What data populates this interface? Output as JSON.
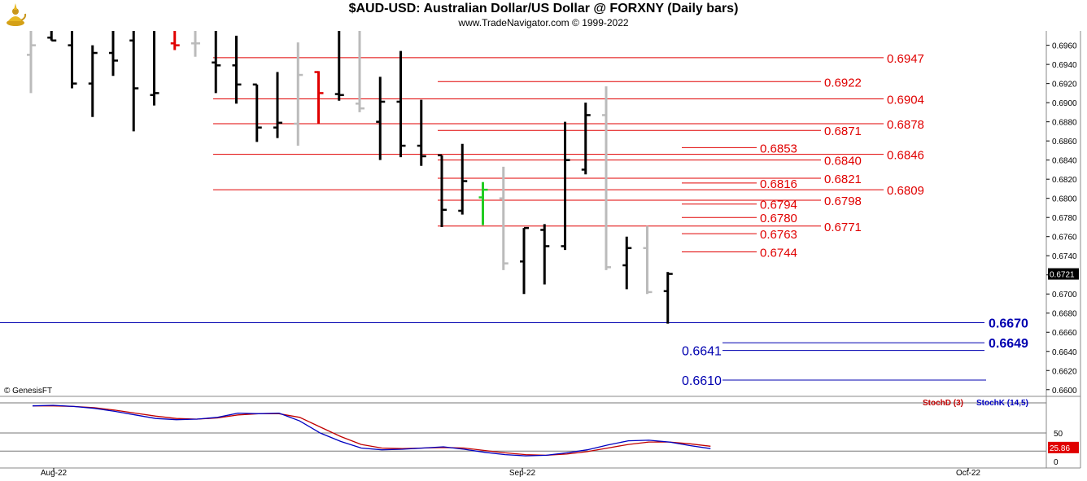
{
  "header": {
    "title": "$AUD-USD:  Australian Dollar/US Dollar @ FORXNY  (Daily bars)",
    "subtitle": "www.TradeNavigator.com © 1999-2022",
    "watermark": "© GenesisFT"
  },
  "chart_data": {
    "type": "bar",
    "price_axis": {
      "ticks": [
        "0.6960",
        "0.6940",
        "0.6920",
        "0.6900",
        "0.6880",
        "0.6860",
        "0.6840",
        "0.6820",
        "0.6800",
        "0.6780",
        "0.6760",
        "0.6740",
        "0.6720",
        "0.6700",
        "0.6680",
        "0.6660",
        "0.6640",
        "0.6620",
        "0.6600"
      ],
      "range": [
        0.6593,
        0.6975
      ]
    },
    "current_price": "0.6721",
    "x_axis": {
      "labels": [
        "Aug-22",
        "Sep-22",
        "Oct-22"
      ]
    },
    "ohlc_bars": [
      {
        "o": 0.695,
        "h": 0.6975,
        "l": 0.691,
        "c": 0.696,
        "color": "gray"
      },
      {
        "o": 0.6968,
        "h": 0.6975,
        "l": 0.6965,
        "c": 0.6965,
        "color": "black"
      },
      {
        "o": 0.696,
        "h": 0.6975,
        "l": 0.6915,
        "c": 0.692,
        "color": "black"
      },
      {
        "o": 0.692,
        "h": 0.696,
        "l": 0.6885,
        "c": 0.6952,
        "color": "black"
      },
      {
        "o": 0.6952,
        "h": 0.6975,
        "l": 0.6928,
        "c": 0.6944,
        "color": "black"
      },
      {
        "o": 0.6965,
        "h": 0.6975,
        "l": 0.687,
        "c": 0.6915,
        "color": "black"
      },
      {
        "o": 0.6908,
        "h": 0.6975,
        "l": 0.6897,
        "c": 0.691,
        "color": "black"
      },
      {
        "o": 0.6962,
        "h": 0.6975,
        "l": 0.6955,
        "c": 0.696,
        "color": "red"
      },
      {
        "o": 0.6962,
        "h": 0.6975,
        "l": 0.6948,
        "c": 0.6962,
        "color": "gray"
      },
      {
        "o": 0.6942,
        "h": 0.6975,
        "l": 0.691,
        "c": 0.6939,
        "color": "black"
      },
      {
        "o": 0.6939,
        "h": 0.697,
        "l": 0.6899,
        "c": 0.6919,
        "color": "black"
      },
      {
        "o": 0.6919,
        "h": 0.6919,
        "l": 0.6859,
        "c": 0.6874,
        "color": "black"
      },
      {
        "o": 0.6874,
        "h": 0.6932,
        "l": 0.6863,
        "c": 0.6879,
        "color": "black"
      },
      {
        "o": 0.6878,
        "h": 0.6963,
        "l": 0.6855,
        "c": 0.6929,
        "color": "gray"
      },
      {
        "o": 0.6932,
        "h": 0.6933,
        "l": 0.6878,
        "c": 0.691,
        "color": "red"
      },
      {
        "o": 0.6909,
        "h": 0.6975,
        "l": 0.6902,
        "c": 0.6908,
        "color": "black"
      },
      {
        "o": 0.6899,
        "h": 0.6975,
        "l": 0.689,
        "c": 0.6894,
        "color": "gray"
      },
      {
        "o": 0.688,
        "h": 0.6927,
        "l": 0.684,
        "c": 0.6901,
        "color": "black"
      },
      {
        "o": 0.6901,
        "h": 0.6954,
        "l": 0.6843,
        "c": 0.6855,
        "color": "black"
      },
      {
        "o": 0.6855,
        "h": 0.6903,
        "l": 0.6834,
        "c": 0.6844,
        "color": "black"
      },
      {
        "o": 0.6845,
        "h": 0.6845,
        "l": 0.677,
        "c": 0.6788,
        "color": "black"
      },
      {
        "o": 0.6787,
        "h": 0.6857,
        "l": 0.6783,
        "c": 0.6818,
        "color": "black"
      },
      {
        "o": 0.6801,
        "h": 0.6817,
        "l": 0.6772,
        "c": 0.6809,
        "color": "green"
      },
      {
        "o": 0.68,
        "h": 0.6833,
        "l": 0.6725,
        "c": 0.6732,
        "color": "gray"
      },
      {
        "o": 0.6734,
        "h": 0.6769,
        "l": 0.67,
        "c": 0.6769,
        "color": "black"
      },
      {
        "o": 0.6767,
        "h": 0.6773,
        "l": 0.671,
        "c": 0.675,
        "color": "black"
      },
      {
        "o": 0.675,
        "h": 0.688,
        "l": 0.6746,
        "c": 0.684,
        "color": "black"
      },
      {
        "o": 0.683,
        "h": 0.69,
        "l": 0.6825,
        "c": 0.6887,
        "color": "black"
      },
      {
        "o": 0.6887,
        "h": 0.6917,
        "l": 0.6725,
        "c": 0.6728,
        "color": "gray"
      },
      {
        "o": 0.673,
        "h": 0.676,
        "l": 0.6705,
        "c": 0.6748,
        "color": "black"
      },
      {
        "o": 0.6748,
        "h": 0.6771,
        "l": 0.67,
        "c": 0.6702,
        "color": "gray"
      },
      {
        "o": 0.6703,
        "h": 0.6723,
        "l": 0.6669,
        "c": 0.6721,
        "color": "black"
      }
    ],
    "resistance_lines": [
      {
        "label": "0.6947",
        "price": 0.6947,
        "x_start": 262
      },
      {
        "label": "0.6922",
        "price": 0.6922,
        "x_start": 538
      },
      {
        "label": "0.6904",
        "price": 0.6904,
        "x_start": 262
      },
      {
        "label": "0.6878",
        "price": 0.6878,
        "x_start": 262
      },
      {
        "label": "0.6871",
        "price": 0.6871,
        "x_start": 538
      },
      {
        "label": "0.6853",
        "price": 0.6853,
        "x_start": 838
      },
      {
        "label": "0.6846",
        "price": 0.6846,
        "x_start": 262
      },
      {
        "label": "0.6840",
        "price": 0.684,
        "x_start": 538
      },
      {
        "label": "0.6821",
        "price": 0.6821,
        "x_start": 538
      },
      {
        "label": "0.6816",
        "price": 0.6816,
        "x_start": 838
      },
      {
        "label": "0.6809",
        "price": 0.6809,
        "x_start": 262
      },
      {
        "label": "0.6798",
        "price": 0.6798,
        "x_start": 538
      },
      {
        "label": "0.6794",
        "price": 0.6794,
        "x_start": 838
      },
      {
        "label": "0.6780",
        "price": 0.678,
        "x_start": 838
      },
      {
        "label": "0.6771",
        "price": 0.6771,
        "x_start": 538
      },
      {
        "label": "0.6763",
        "price": 0.6763,
        "x_start": 838
      },
      {
        "label": "0.6744",
        "price": 0.6744,
        "x_start": 838
      }
    ],
    "support_lines": [
      {
        "label": "0.6670",
        "price": 0.667,
        "bold": true
      },
      {
        "label": "0.6649",
        "price": 0.6649,
        "bold": true
      },
      {
        "label": "0.6641",
        "price": 0.6641,
        "bold": false
      },
      {
        "label": "0.6610",
        "price": 0.661,
        "bold": false
      }
    ],
    "stochastic": {
      "legend_d": "StochD (3)",
      "legend_k": "StochK (14,5)",
      "axis_ticks": [
        "50",
        "0"
      ],
      "current_value": "25.86",
      "range": [
        0,
        100
      ],
      "stoch_k": [
        95,
        96,
        94,
        91,
        86,
        80,
        74,
        72,
        73,
        76,
        83,
        82,
        83,
        70,
        50,
        36,
        25,
        22,
        23,
        25,
        27,
        23,
        18,
        14,
        12,
        13,
        17,
        22,
        30,
        37,
        38,
        35,
        29,
        24
      ],
      "stoch_d": [
        95,
        95,
        94,
        92,
        88,
        83,
        78,
        74,
        73,
        75,
        80,
        82,
        82,
        76,
        60,
        44,
        31,
        25,
        24,
        25,
        26,
        25,
        21,
        17,
        14,
        13,
        15,
        19,
        25,
        31,
        35,
        35,
        32,
        28
      ]
    }
  },
  "colors": {
    "resistance": "#e00000",
    "support": "#0000b0",
    "stoch_k": "#0000c0",
    "stoch_d": "#c00000",
    "bar_black": "#000000",
    "bar_gray": "#bbbbbb",
    "bar_red": "#e00000",
    "bar_green": "#22cc22"
  }
}
